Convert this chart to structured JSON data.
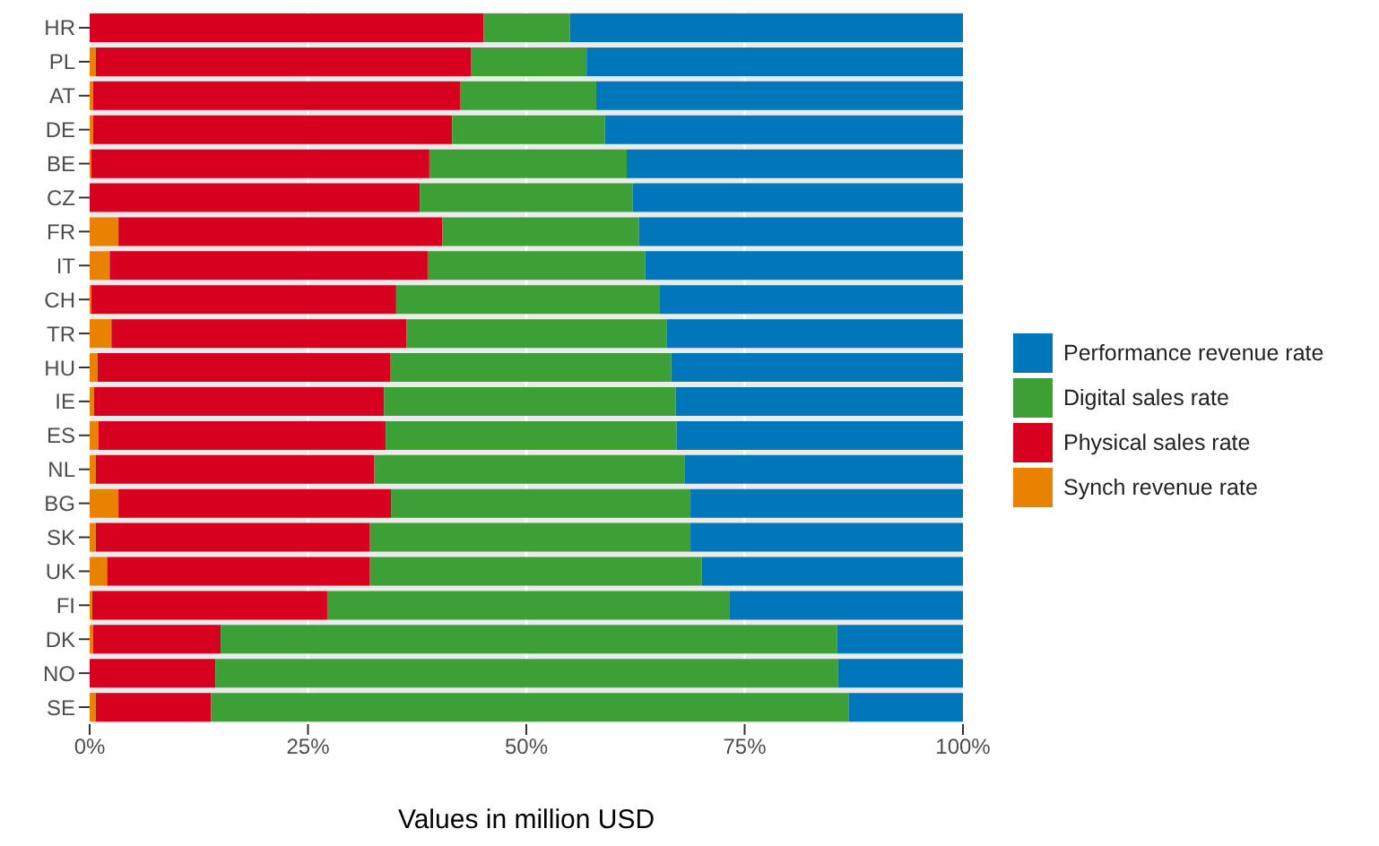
{
  "chart_data": {
    "type": "bar",
    "orientation": "horizontal",
    "stacked": true,
    "xlabel": "Values in million USD",
    "categories": [
      "HR",
      "PL",
      "AT",
      "DE",
      "BE",
      "CZ",
      "FR",
      "IT",
      "CH",
      "TR",
      "HU",
      "IE",
      "ES",
      "NL",
      "BG",
      "SK",
      "UK",
      "FI",
      "DK",
      "NO",
      "SE"
    ],
    "series": [
      {
        "name": "Synch revenue rate",
        "color": "#e88200",
        "values": [
          0,
          0.7,
          0.4,
          0.4,
          0.2,
          0,
          3.3,
          2.3,
          0.2,
          2.5,
          0.9,
          0.5,
          1.0,
          0.7,
          3.3,
          0.7,
          2.0,
          0.3,
          0.4,
          0,
          0.7
        ]
      },
      {
        "name": "Physical sales rate",
        "color": "#d7001e",
        "values": [
          45.1,
          43.0,
          42.0,
          41.1,
          38.7,
          37.8,
          37.1,
          36.4,
          34.9,
          33.8,
          33.5,
          33.2,
          32.9,
          31.9,
          31.2,
          31.4,
          30.1,
          26.9,
          14.6,
          14.4,
          13.2
        ]
      },
      {
        "name": "Digital sales rate",
        "color": "#3da037",
        "values": [
          9.9,
          13.2,
          15.6,
          17.5,
          22.6,
          24.4,
          22.5,
          24.9,
          30.2,
          29.8,
          32.2,
          33.4,
          33.3,
          35.5,
          34.3,
          36.7,
          38.0,
          46.1,
          70.6,
          71.3,
          73.0
        ]
      },
      {
        "name": "Performance revenue rate",
        "color": "#0077bb",
        "values": [
          45.0,
          43.1,
          42.0,
          41.0,
          38.5,
          37.8,
          37.1,
          36.4,
          34.7,
          33.9,
          33.4,
          32.9,
          32.8,
          31.9,
          31.2,
          31.2,
          29.9,
          26.7,
          14.4,
          14.3,
          13.1
        ]
      }
    ],
    "xlim": [
      0,
      100
    ],
    "xticks": [
      {
        "value": 0,
        "label": "0%"
      },
      {
        "value": 25,
        "label": "25%"
      },
      {
        "value": 50,
        "label": "50%"
      },
      {
        "value": 75,
        "label": "75%"
      },
      {
        "value": 100,
        "label": "100%"
      }
    ],
    "grid": true,
    "legend": "right"
  }
}
